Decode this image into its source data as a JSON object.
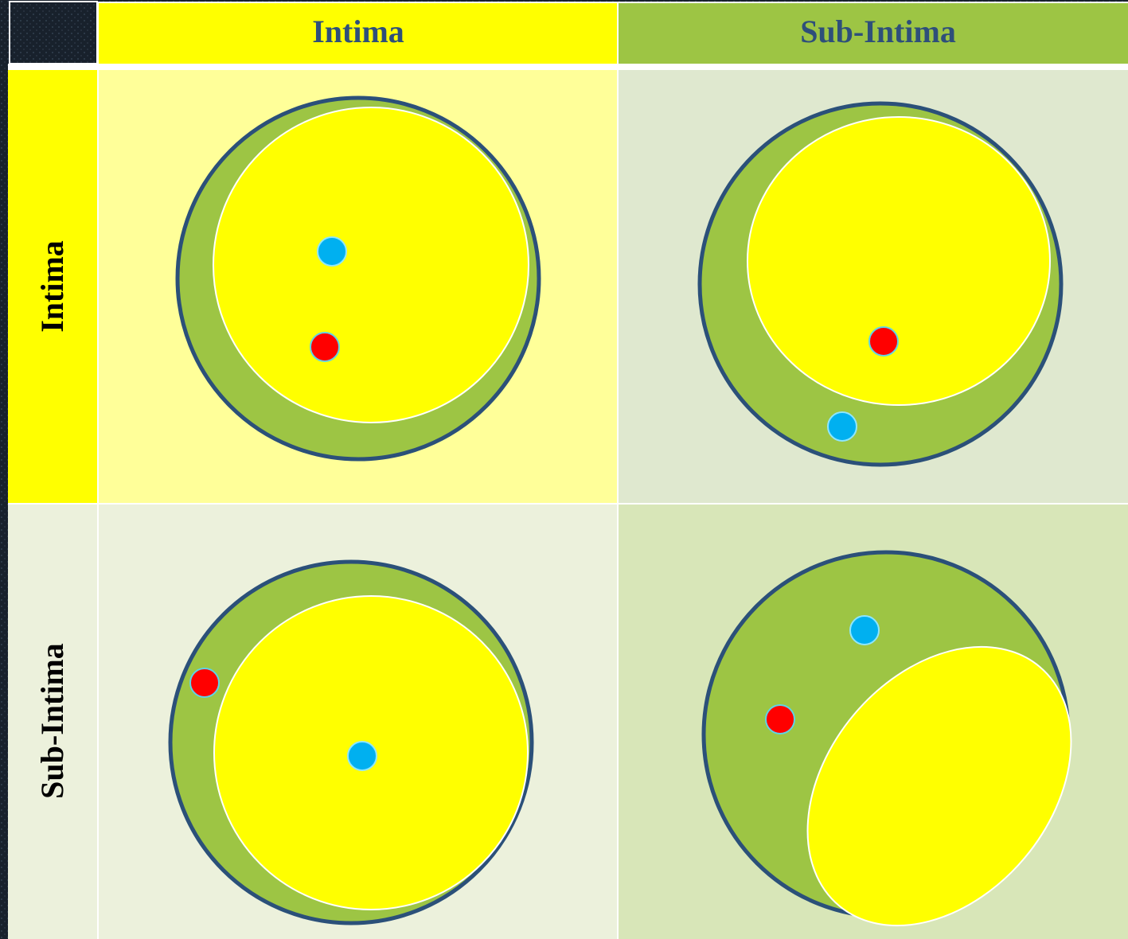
{
  "table": {
    "column_headers": [
      "Intima",
      "Sub-Intima"
    ],
    "row_headers": [
      "Intima",
      "Sub-Intima"
    ]
  }
}
